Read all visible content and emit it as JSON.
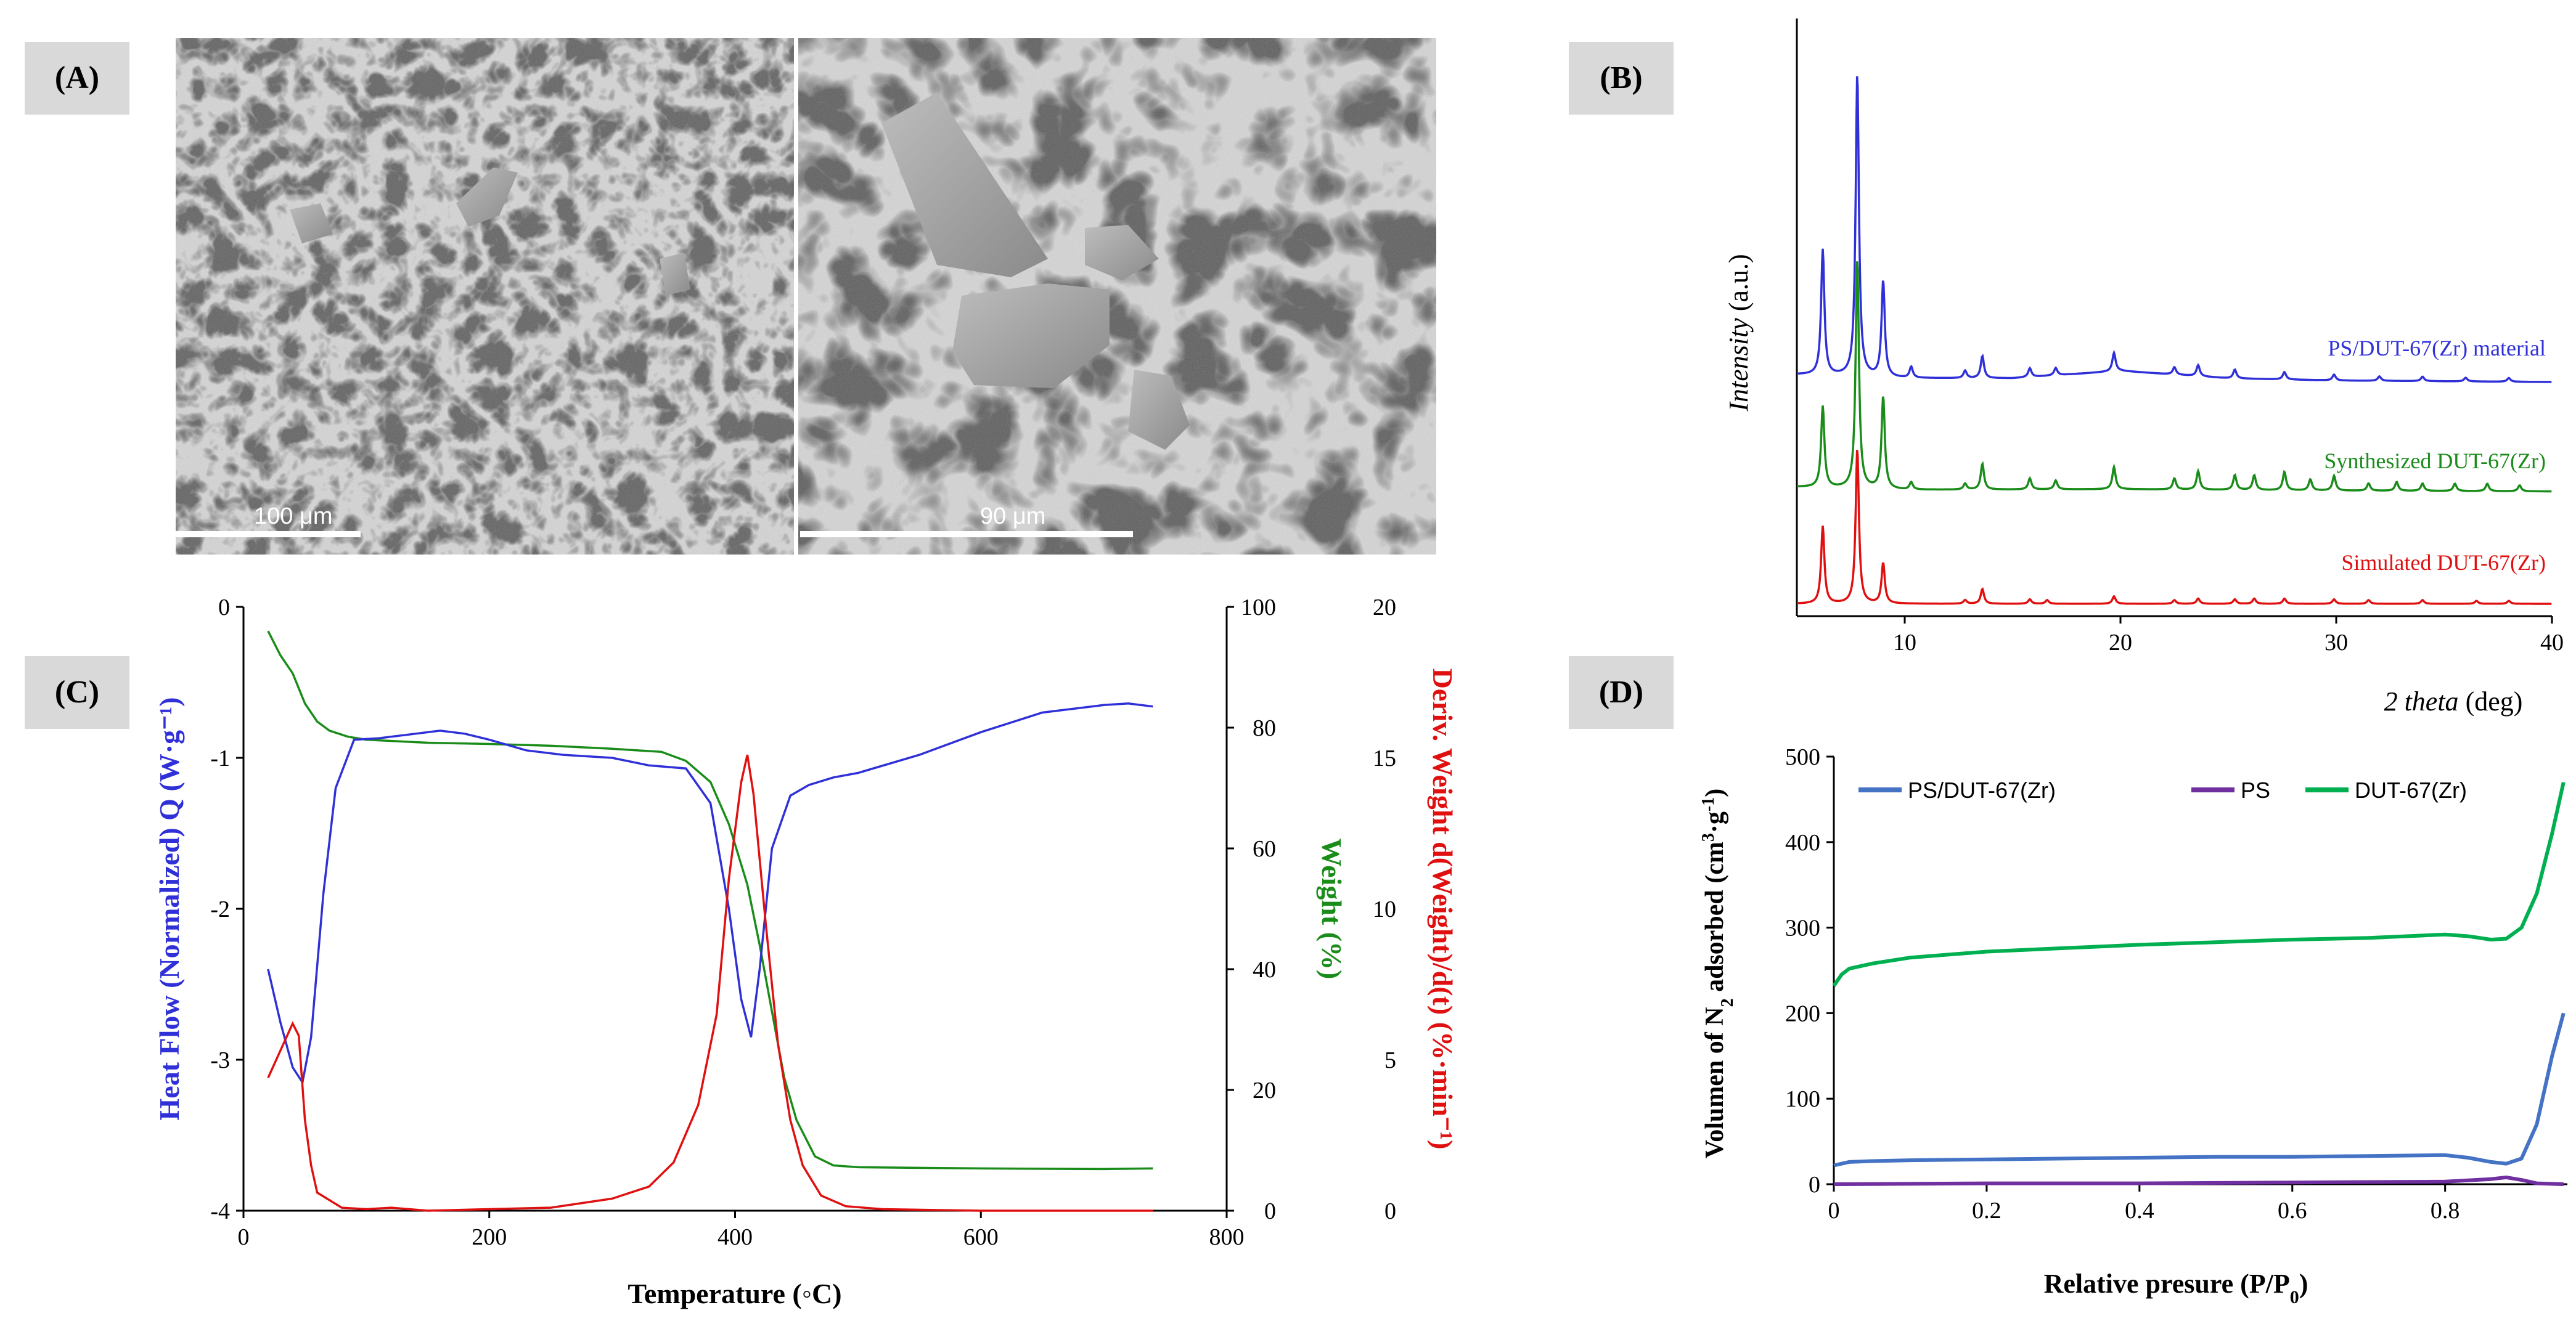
{
  "panels": {
    "A": {
      "label": "(A)",
      "scale_bar_left": "100 μm",
      "scale_bar_right": "90 μm"
    },
    "B": {
      "label": "(B)"
    },
    "C": {
      "label": "(C)"
    },
    "D": {
      "label": "(D)"
    }
  },
  "colors": {
    "blue": "#3030d8",
    "green": "#1a8c1a",
    "red": "#e01010",
    "d_blue": "#4472c4",
    "d_purple": "#7030a0",
    "d_green": "#00b050"
  },
  "chart_data": [
    {
      "id": "B",
      "type": "line",
      "title": "",
      "xlabel_italic": "2 theta",
      "xlabel_rest": " (deg)",
      "ylabel_italic": "Intensity",
      "ylabel_rest": " (a.u.)",
      "xlim": [
        5,
        40
      ],
      "xticks": [
        10,
        20,
        30,
        40
      ],
      "yticks_shown": false,
      "series": [
        {
          "name": "PS/DUT-67(Zr) material",
          "offset": 2,
          "baseline": [
            [
              5,
              0.1
            ],
            [
              10,
              0.05
            ],
            [
              15,
              0.05
            ],
            [
              20,
              0.15
            ],
            [
              25,
              0.05
            ],
            [
              30,
              0.02
            ],
            [
              40,
              0.0
            ]
          ],
          "peaks": [
            [
              6.2,
              1.7
            ],
            [
              7.8,
              4.1
            ],
            [
              9.0,
              1.3
            ],
            [
              10.3,
              0.15
            ],
            [
              12.8,
              0.1
            ],
            [
              13.6,
              0.3
            ],
            [
              15.8,
              0.12
            ],
            [
              17.0,
              0.1
            ],
            [
              19.7,
              0.25
            ],
            [
              22.5,
              0.1
            ],
            [
              23.6,
              0.15
            ],
            [
              25.3,
              0.12
            ],
            [
              27.6,
              0.1
            ],
            [
              29.9,
              0.08
            ],
            [
              32.0,
              0.06
            ],
            [
              34.0,
              0.06
            ],
            [
              36.0,
              0.05
            ],
            [
              38.0,
              0.05
            ]
          ]
        },
        {
          "name": "Synthesized DUT-67(Zr)",
          "offset": 1,
          "baseline": [
            [
              5,
              0.08
            ],
            [
              10,
              0.04
            ],
            [
              20,
              0.05
            ],
            [
              30,
              0.03
            ],
            [
              40,
              0.02
            ]
          ],
          "peaks": [
            [
              6.2,
              1.1
            ],
            [
              7.8,
              3.1
            ],
            [
              9.0,
              1.25
            ],
            [
              10.3,
              0.1
            ],
            [
              12.8,
              0.08
            ],
            [
              13.6,
              0.35
            ],
            [
              15.8,
              0.15
            ],
            [
              17.0,
              0.12
            ],
            [
              19.7,
              0.3
            ],
            [
              22.5,
              0.15
            ],
            [
              23.6,
              0.25
            ],
            [
              25.3,
              0.2
            ],
            [
              26.2,
              0.2
            ],
            [
              27.6,
              0.25
            ],
            [
              28.8,
              0.15
            ],
            [
              29.9,
              0.2
            ],
            [
              31.5,
              0.1
            ],
            [
              32.8,
              0.12
            ],
            [
              34.0,
              0.1
            ],
            [
              35.5,
              0.1
            ],
            [
              37.0,
              0.1
            ],
            [
              38.5,
              0.08
            ]
          ]
        },
        {
          "name": "Simulated DUT-67(Zr)",
          "offset": 0,
          "baseline": [
            [
              5,
              0.0
            ],
            [
              40,
              0.0
            ]
          ],
          "peaks": [
            [
              6.2,
              1.05
            ],
            [
              7.8,
              2.1
            ],
            [
              9.0,
              0.55
            ],
            [
              12.8,
              0.05
            ],
            [
              13.6,
              0.2
            ],
            [
              15.8,
              0.06
            ],
            [
              16.6,
              0.05
            ],
            [
              19.7,
              0.1
            ],
            [
              22.5,
              0.05
            ],
            [
              23.6,
              0.07
            ],
            [
              25.3,
              0.06
            ],
            [
              26.2,
              0.07
            ],
            [
              27.6,
              0.07
            ],
            [
              29.9,
              0.06
            ],
            [
              31.5,
              0.05
            ],
            [
              34.0,
              0.05
            ],
            [
              36.5,
              0.04
            ],
            [
              38.0,
              0.04
            ]
          ]
        }
      ]
    },
    {
      "id": "C",
      "type": "line",
      "title": "",
      "xlabel": "Temperature (◦C)",
      "ylabel_left": "Heat Flow (Normalized) Q (W·g⁻¹)",
      "ylabel_right1": "Weight (%)",
      "ylabel_right2": "Deriv. Weight d(Weight)/d(t) (%·min⁻¹)",
      "xlim": [
        0,
        800
      ],
      "xticks": [
        0,
        200,
        400,
        600,
        800
      ],
      "ylim_left": [
        -4,
        0
      ],
      "yticks_left": [
        -4,
        -3,
        -2,
        -1,
        0
      ],
      "ylim_right1": [
        0,
        100
      ],
      "yticks_right1": [
        0,
        20,
        40,
        60,
        80,
        100
      ],
      "ylim_right2": [
        0,
        20
      ],
      "yticks_right2": [
        0,
        5,
        10,
        15,
        20
      ],
      "series": [
        {
          "name": "Heat Flow",
          "axis": "left",
          "points": [
            [
              20,
              -2.4
            ],
            [
              30,
              -2.75
            ],
            [
              40,
              -3.05
            ],
            [
              48,
              -3.15
            ],
            [
              55,
              -2.85
            ],
            [
              65,
              -1.9
            ],
            [
              75,
              -1.2
            ],
            [
              90,
              -0.88
            ],
            [
              110,
              -0.87
            ],
            [
              130,
              -0.85
            ],
            [
              160,
              -0.82
            ],
            [
              180,
              -0.84
            ],
            [
              200,
              -0.88
            ],
            [
              230,
              -0.95
            ],
            [
              260,
              -0.98
            ],
            [
              300,
              -1.0
            ],
            [
              330,
              -1.05
            ],
            [
              360,
              -1.07
            ],
            [
              380,
              -1.3
            ],
            [
              395,
              -2.0
            ],
            [
              405,
              -2.6
            ],
            [
              413,
              -2.85
            ],
            [
              420,
              -2.4
            ],
            [
              430,
              -1.6
            ],
            [
              445,
              -1.25
            ],
            [
              460,
              -1.18
            ],
            [
              480,
              -1.13
            ],
            [
              500,
              -1.1
            ],
            [
              550,
              -0.98
            ],
            [
              600,
              -0.83
            ],
            [
              650,
              -0.7
            ],
            [
              700,
              -0.65
            ],
            [
              720,
              -0.64
            ],
            [
              740,
              -0.66
            ]
          ]
        },
        {
          "name": "Weight",
          "axis": "right1",
          "points": [
            [
              20,
              96
            ],
            [
              30,
              92
            ],
            [
              40,
              89
            ],
            [
              50,
              84
            ],
            [
              60,
              81
            ],
            [
              70,
              79.5
            ],
            [
              85,
              78.5
            ],
            [
              100,
              78
            ],
            [
              150,
              77.5
            ],
            [
              200,
              77.3
            ],
            [
              250,
              77
            ],
            [
              300,
              76.5
            ],
            [
              340,
              76
            ],
            [
              360,
              74.5
            ],
            [
              380,
              71
            ],
            [
              395,
              64
            ],
            [
              410,
              54
            ],
            [
              420,
              44
            ],
            [
              430,
              33
            ],
            [
              440,
              22
            ],
            [
              450,
              15
            ],
            [
              465,
              9
            ],
            [
              480,
              7.5
            ],
            [
              500,
              7.2
            ],
            [
              600,
              7.0
            ],
            [
              700,
              6.9
            ],
            [
              740,
              7.0
            ]
          ]
        },
        {
          "name": "Deriv. Weight",
          "axis": "right2",
          "points": [
            [
              20,
              4.4
            ],
            [
              30,
              5.3
            ],
            [
              40,
              6.2
            ],
            [
              45,
              5.8
            ],
            [
              50,
              3.0
            ],
            [
              55,
              1.5
            ],
            [
              60,
              0.6
            ],
            [
              80,
              0.1
            ],
            [
              100,
              0.05
            ],
            [
              120,
              0.1
            ],
            [
              150,
              0.0
            ],
            [
              200,
              0.05
            ],
            [
              250,
              0.1
            ],
            [
              300,
              0.4
            ],
            [
              330,
              0.8
            ],
            [
              350,
              1.6
            ],
            [
              370,
              3.5
            ],
            [
              385,
              6.5
            ],
            [
              395,
              11.0
            ],
            [
              405,
              14.2
            ],
            [
              410,
              15.1
            ],
            [
              415,
              13.8
            ],
            [
              425,
              9.5
            ],
            [
              435,
              5.5
            ],
            [
              445,
              3.0
            ],
            [
              455,
              1.5
            ],
            [
              470,
              0.5
            ],
            [
              490,
              0.15
            ],
            [
              520,
              0.05
            ],
            [
              600,
              0.0
            ],
            [
              700,
              0.0
            ],
            [
              740,
              0.0
            ]
          ]
        }
      ]
    },
    {
      "id": "D",
      "type": "line",
      "title": "",
      "xlabel": "Relative presure (P/P",
      "xlabel_sub": "0",
      "xlabel_end": ")",
      "ylabel_pre": "Volumen of N",
      "ylabel_sub": "2",
      "ylabel_mid": " adsorbed (cm",
      "ylabel_sup": "3",
      "ylabel_mid2": "·g",
      "ylabel_sup2": "-1",
      "ylabel_end": ")",
      "xlim": [
        0,
        0.96
      ],
      "xticks": [
        0,
        0.2,
        0.4,
        0.6,
        0.8
      ],
      "ylim": [
        0,
        500
      ],
      "yticks": [
        0,
        100,
        200,
        300,
        400,
        500
      ],
      "legend_position": "top",
      "series": [
        {
          "name": "PS/DUT-67(Zr)",
          "points": [
            [
              0.0,
              22
            ],
            [
              0.02,
              26
            ],
            [
              0.05,
              27
            ],
            [
              0.1,
              28
            ],
            [
              0.2,
              29
            ],
            [
              0.3,
              30
            ],
            [
              0.4,
              31
            ],
            [
              0.5,
              32
            ],
            [
              0.6,
              32
            ],
            [
              0.7,
              33
            ],
            [
              0.8,
              34
            ],
            [
              0.83,
              31
            ],
            [
              0.86,
              26
            ],
            [
              0.88,
              24
            ],
            [
              0.9,
              30
            ],
            [
              0.92,
              70
            ],
            [
              0.94,
              150
            ],
            [
              0.955,
              200
            ]
          ]
        },
        {
          "name": "PS",
          "points": [
            [
              0.0,
              0
            ],
            [
              0.2,
              1
            ],
            [
              0.4,
              1
            ],
            [
              0.6,
              2
            ],
            [
              0.8,
              3
            ],
            [
              0.86,
              6
            ],
            [
              0.88,
              8
            ],
            [
              0.9,
              5
            ],
            [
              0.92,
              1
            ],
            [
              0.955,
              0
            ]
          ]
        },
        {
          "name": "DUT-67(Zr)",
          "points": [
            [
              0.0,
              232
            ],
            [
              0.01,
              245
            ],
            [
              0.02,
              252
            ],
            [
              0.05,
              258
            ],
            [
              0.1,
              265
            ],
            [
              0.2,
              272
            ],
            [
              0.3,
              276
            ],
            [
              0.4,
              280
            ],
            [
              0.5,
              283
            ],
            [
              0.6,
              286
            ],
            [
              0.7,
              288
            ],
            [
              0.8,
              292
            ],
            [
              0.83,
              290
            ],
            [
              0.86,
              286
            ],
            [
              0.88,
              287
            ],
            [
              0.9,
              300
            ],
            [
              0.92,
              340
            ],
            [
              0.94,
              410
            ],
            [
              0.955,
              470
            ]
          ]
        }
      ]
    }
  ]
}
